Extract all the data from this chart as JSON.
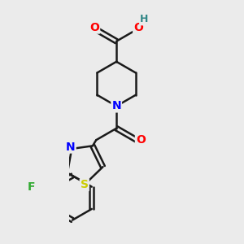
{
  "bg_color": "#ebebeb",
  "atom_colors": {
    "O": "#ff0000",
    "N": "#0000ff",
    "S": "#cccc00",
    "F": "#33aa33",
    "H": "#338888",
    "C": "#1a1a1a"
  },
  "bond_width": 1.8,
  "font_size": 10,
  "fig_size": [
    3.0,
    3.0
  ],
  "dpi": 100
}
